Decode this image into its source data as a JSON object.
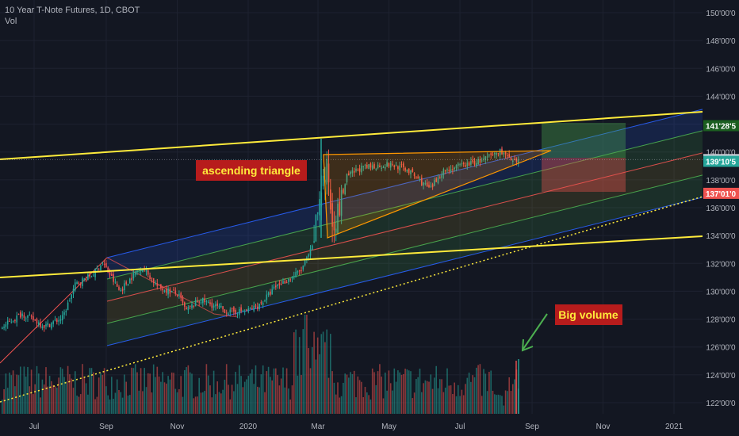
{
  "header": {
    "title": "10 Year T-Note Futures, 1D, CBOT",
    "indicator": "Vol"
  },
  "annotations": {
    "triangle_label": "ascending triangle",
    "volume_label": "Big volume"
  },
  "colors": {
    "background": "#131722",
    "up_candle": "#26a69a",
    "down_candle": "#ef5350",
    "channel_blue": "#2962ff",
    "channel_green": "#4caf50",
    "median_red": "#ef5350",
    "trendline_yellow": "#ffeb3b",
    "triangle_orange": "#ff9800",
    "label_bg": "#b71c1c",
    "label_text": "#ffeb3b",
    "arrow_green": "#4caf50"
  },
  "price_tags": [
    {
      "text": "141'28'5",
      "value": 141.89,
      "color": "#1b5e20"
    },
    {
      "text": "139'14'5",
      "value": 139.45,
      "color": "#d1d4dc"
    },
    {
      "text": "139'10'5",
      "value": 139.33,
      "color": "#26a69a"
    },
    {
      "text": "137'01'0",
      "value": 137.03,
      "color": "#ef5350"
    }
  ],
  "chart_data": {
    "type": "candlestick",
    "x_ticks": [
      "Jul",
      "Sep",
      "Nov",
      "2020",
      "Mar",
      "May",
      "Jul",
      "Sep",
      "Nov",
      "2021"
    ],
    "y_ticks": [
      "150'00'0",
      "148'00'0",
      "146'00'0",
      "144'00'0",
      "142'00'0",
      "140'00'0",
      "138'00'0",
      "136'00'0",
      "134'00'0",
      "132'00'0",
      "130'00'0",
      "128'00'0",
      "126'00'0",
      "124'00'0",
      "122'00'0"
    ],
    "y_tick_values": [
      150,
      148,
      146,
      144,
      142,
      140,
      138,
      136,
      134,
      132,
      130,
      128,
      126,
      124,
      122
    ],
    "ylim": [
      121,
      151
    ],
    "close_anchors": [
      [
        "2019-06-01",
        127.3
      ],
      [
        "2019-06-20",
        128.4
      ],
      [
        "2019-07-10",
        127.5
      ],
      [
        "2019-07-25",
        128.1
      ],
      [
        "2019-08-05",
        130.5
      ],
      [
        "2019-08-20",
        131.2
      ],
      [
        "2019-08-28",
        132.1
      ],
      [
        "2019-09-12",
        130.0
      ],
      [
        "2019-09-20",
        130.8
      ],
      [
        "2019-10-01",
        131.8
      ],
      [
        "2019-10-15",
        130.3
      ],
      [
        "2019-11-01",
        129.8
      ],
      [
        "2019-11-08",
        128.6
      ],
      [
        "2019-11-20",
        129.4
      ],
      [
        "2019-12-01",
        129.0
      ],
      [
        "2019-12-15",
        128.5
      ],
      [
        "2019-12-31",
        128.6
      ],
      [
        "2020-01-10",
        129.0
      ],
      [
        "2020-01-25",
        130.4
      ],
      [
        "2020-02-05",
        130.9
      ],
      [
        "2020-02-15",
        131.5
      ],
      [
        "2020-02-25",
        133.2
      ],
      [
        "2020-03-03",
        137.5
      ],
      [
        "2020-03-09",
        138.8
      ],
      [
        "2020-03-12",
        135.0
      ],
      [
        "2020-03-18",
        135.6
      ],
      [
        "2020-03-25",
        138.2
      ],
      [
        "2020-04-05",
        138.8
      ],
      [
        "2020-04-20",
        139.0
      ],
      [
        "2020-05-01",
        139.1
      ],
      [
        "2020-05-15",
        138.8
      ],
      [
        "2020-06-05",
        137.3
      ],
      [
        "2020-06-15",
        138.6
      ],
      [
        "2020-07-01",
        139.0
      ],
      [
        "2020-07-20",
        139.4
      ],
      [
        "2020-08-05",
        140.1
      ],
      [
        "2020-08-15",
        139.2
      ],
      [
        "2020-08-27",
        139.33
      ]
    ],
    "volume_max": 100
  }
}
